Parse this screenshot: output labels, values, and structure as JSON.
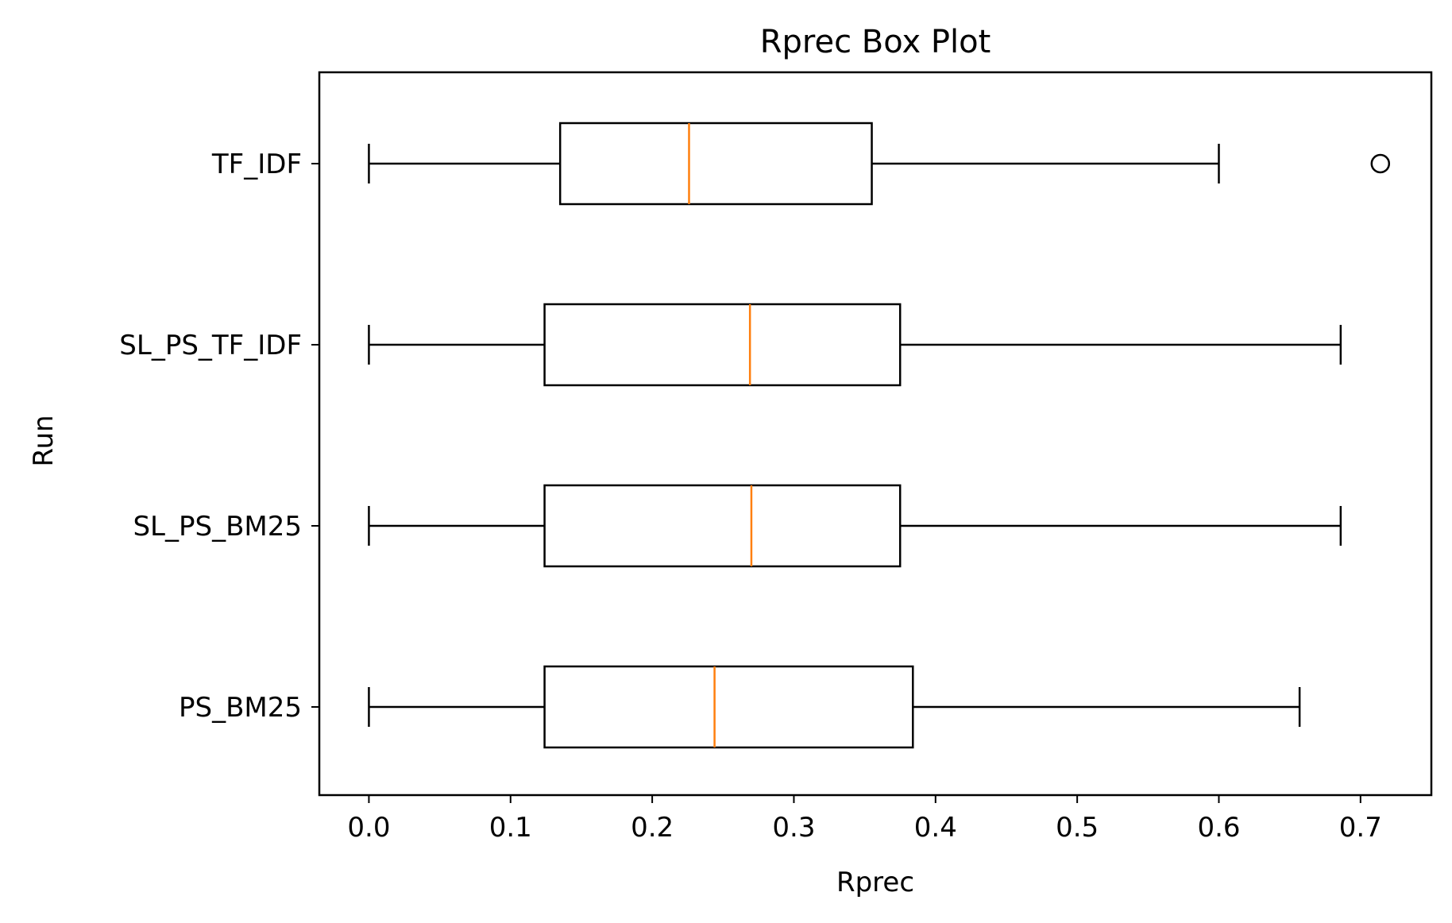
{
  "chart_data": {
    "type": "boxplot",
    "orientation": "horizontal",
    "title": "Rprec Box Plot",
    "xlabel": "Rprec",
    "ylabel": "Run",
    "xlim": [
      -0.035,
      0.75
    ],
    "xticks": [
      0.0,
      0.1,
      0.2,
      0.3,
      0.4,
      0.5,
      0.6,
      0.7
    ],
    "xtick_labels": [
      "0.0",
      "0.1",
      "0.2",
      "0.3",
      "0.4",
      "0.5",
      "0.6",
      "0.7"
    ],
    "categories_top_to_bottom": [
      "TF_IDF",
      "SL_PS_TF_IDF",
      "SL_PS_BM25",
      "PS_BM25"
    ],
    "series": [
      {
        "category": "TF_IDF",
        "whisker_low": 0.0,
        "q1": 0.135,
        "median": 0.226,
        "q3": 0.355,
        "whisker_high": 0.6,
        "outliers": [
          0.714
        ]
      },
      {
        "category": "SL_PS_TF_IDF",
        "whisker_low": 0.0,
        "q1": 0.124,
        "median": 0.269,
        "q3": 0.375,
        "whisker_high": 0.686,
        "outliers": []
      },
      {
        "category": "SL_PS_BM25",
        "whisker_low": 0.0,
        "q1": 0.124,
        "median": 0.27,
        "q3": 0.375,
        "whisker_high": 0.686,
        "outliers": []
      },
      {
        "category": "PS_BM25",
        "whisker_low": 0.0,
        "q1": 0.124,
        "median": 0.244,
        "q3": 0.384,
        "whisker_high": 0.657,
        "outliers": []
      }
    ],
    "grid": false,
    "colors": {
      "box": "#000000",
      "median": "#ff7f0e",
      "outlier": "#000000"
    }
  }
}
